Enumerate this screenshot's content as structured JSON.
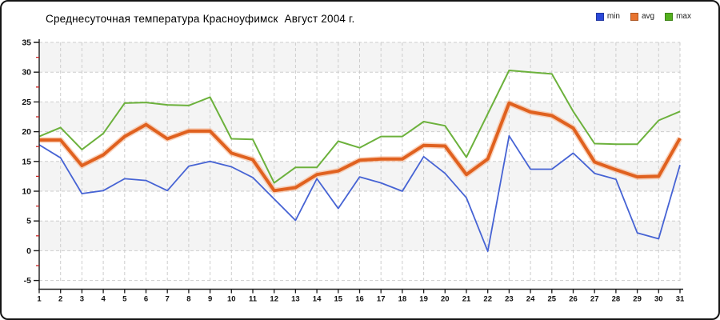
{
  "window": {
    "background": "#ffffff",
    "border_color": "#141414"
  },
  "chart_data": {
    "type": "line",
    "title": "Среднесуточная температура Красноуфимск  Август 2004 г.",
    "x": [
      1,
      2,
      3,
      4,
      5,
      6,
      7,
      8,
      9,
      10,
      11,
      12,
      13,
      14,
      15,
      16,
      17,
      18,
      19,
      20,
      21,
      22,
      23,
      24,
      25,
      26,
      27,
      28,
      29,
      30,
      31
    ],
    "xlabel": "",
    "ylabel": "",
    "ylim": [
      -5,
      35
    ],
    "ytick_step": 5,
    "yminor_tick_step": 2.5,
    "ytick_labels": [
      "35",
      "30",
      "25",
      "20",
      "15",
      "10",
      "5",
      "0",
      "-5"
    ],
    "grid": true,
    "grid_style": "dashed",
    "plot_bands_alternate": true,
    "legend_position": "top-right",
    "legend_labels": [
      "min",
      "avg",
      "max"
    ],
    "series": [
      {
        "name": "min",
        "color": "#4663d4",
        "swatch": "#2b48d9",
        "width": 1.8,
        "values": [
          17.8,
          15.6,
          9.6,
          10.1,
          12.1,
          11.8,
          10.1,
          14.2,
          15.0,
          14.1,
          12.3,
          8.7,
          5.1,
          12.1,
          7.1,
          12.4,
          11.4,
          10.0,
          15.8,
          13.0,
          8.9,
          -0.1,
          19.3,
          13.7,
          13.7,
          16.4,
          13.0,
          12.0,
          3.0,
          2.0,
          14.4
        ]
      },
      {
        "name": "avg",
        "color": "#e0611f",
        "halo": "#f5b089",
        "swatch": "#e8742f",
        "width": 4,
        "values": [
          18.6,
          18.6,
          14.3,
          16.1,
          19.2,
          21.2,
          18.8,
          20.1,
          20.1,
          16.4,
          15.3,
          10.1,
          10.6,
          12.8,
          13.4,
          15.2,
          15.4,
          15.4,
          17.7,
          17.6,
          12.8,
          15.4,
          24.8,
          23.3,
          22.7,
          20.6,
          14.9,
          13.6,
          12.4,
          12.5,
          18.9
        ]
      },
      {
        "name": "max",
        "color": "#6cb13c",
        "swatch": "#53b01e",
        "width": 2,
        "values": [
          19.2,
          20.7,
          17.0,
          19.7,
          24.8,
          24.9,
          24.5,
          24.4,
          25.8,
          18.8,
          18.7,
          11.4,
          14.0,
          14.0,
          18.4,
          17.3,
          19.2,
          19.2,
          21.7,
          21.0,
          15.7,
          23.0,
          30.3,
          30.0,
          29.7,
          23.4,
          18.0,
          17.9,
          17.9,
          21.9,
          23.4
        ]
      }
    ],
    "colors": {
      "band_fill": "#f4f4f4",
      "gridline": "#cdcdcd",
      "axis": "#1a1a1a",
      "minor_tick": "#cc2222",
      "tick_label": "#111111"
    }
  }
}
